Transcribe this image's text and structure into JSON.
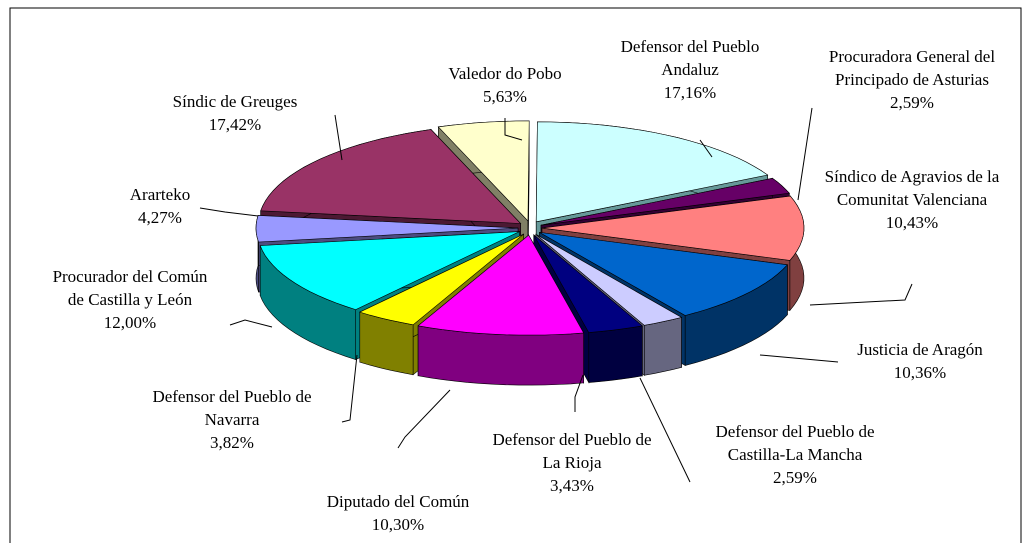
{
  "chart_data": {
    "type": "pie",
    "categories": [
      "Valedor do Pobo",
      "Defensor del Pueblo Andaluz",
      "Procuradora General del Principado de Asturias",
      "Síndico de Agravios de la Comunitat Valenciana",
      "Justicia de Aragón",
      "Defensor del Pueblo de Castilla-La Mancha",
      "Defensor del Pueblo de La Rioja",
      "Diputado del Común",
      "Defensor del Pueblo de Navarra",
      "Procurador del Común de Castilla y León",
      "Ararteko",
      "Síndic de Greuges"
    ],
    "values": [
      5.63,
      17.16,
      2.59,
      10.43,
      10.36,
      2.59,
      3.43,
      10.3,
      3.82,
      12.0,
      4.27,
      17.42
    ],
    "value_labels": [
      "5,63%",
      "17,16%",
      "2,59%",
      "10,43%",
      "10,36%",
      "2,59%",
      "3,43%",
      "10,30%",
      "3,82%",
      "12,00%",
      "4,27%",
      "17,42%"
    ],
    "colors": [
      "#ffffcc",
      "#ccffff",
      "#660066",
      "#ff8080",
      "#0066cc",
      "#ccccff",
      "#000080",
      "#ff00ff",
      "#ffff00",
      "#00ffff",
      "#9999ff",
      "#993366"
    ],
    "side_colors": [
      "#808066",
      "#669999",
      "#330033",
      "#804040",
      "#003366",
      "#666680",
      "#000040",
      "#800080",
      "#808000",
      "#008080",
      "#4c4c80",
      "#4c1933"
    ]
  }
}
